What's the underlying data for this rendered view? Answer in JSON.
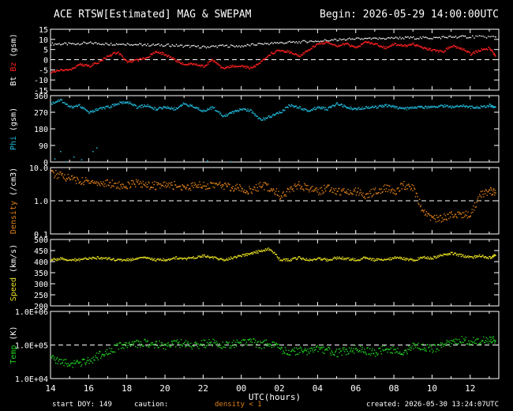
{
  "header": {
    "title": "ACE RTSW[Estimated] MAG & SWEPAM",
    "begin": "Begin: 2026-05-29 14:00:00UTC"
  },
  "footer": {
    "start_doy": "start DOY: 149",
    "caution": "caution:",
    "density_note": "density < 1",
    "created": "created: 2026-05-30 13:24:07UTC"
  },
  "colors": {
    "bt": "#ffffff",
    "bz": "#ff2020",
    "phi": "#20b8d8",
    "density": "#e08018",
    "speed": "#e8e020",
    "temp": "#20d020",
    "frame": "#ffffff"
  },
  "chart_data": {
    "type": "scatter",
    "xlabel": "UTC(hours)",
    "x_tick_labels": [
      "14",
      "16",
      "18",
      "20",
      "22",
      "00",
      "02",
      "04",
      "06",
      "08",
      "10",
      "12"
    ],
    "x_range_hours": [
      14,
      37.5
    ],
    "panels": [
      {
        "id": "mag",
        "ylabel_parts": [
          {
            "text": "Bt",
            "color": "#ffffff"
          },
          {
            "text": " Bz",
            "color": "#ff2020"
          },
          {
            "text": " (gsm)",
            "color": "#ffffff"
          }
        ],
        "ylim": [
          -15,
          15
        ],
        "y_ticks": [
          "15",
          "10",
          "5",
          "0",
          "-5",
          "-10",
          "-15"
        ],
        "zero_line": 0,
        "series": [
          {
            "name": "Bt",
            "color": "#ffffff",
            "x": [
              14,
              15,
              16,
              17,
              18,
              19,
              20,
              21,
              22,
              23,
              24,
              25,
              26,
              27,
              28,
              29,
              30,
              31,
              32,
              33,
              34,
              35,
              36,
              37.3
            ],
            "y": [
              8,
              8,
              8.5,
              8,
              8,
              7.5,
              7.5,
              7,
              6.5,
              7,
              7,
              8,
              8.5,
              9,
              9.5,
              10,
              10.5,
              10.5,
              11,
              11,
              11,
              11.5,
              11.5,
              11.5
            ]
          },
          {
            "name": "Bz",
            "color": "#ff2020",
            "x": [
              14,
              14.5,
              15,
              15.5,
              16,
              16.5,
              17,
              17.5,
              18,
              18.5,
              19,
              19.5,
              20,
              20.5,
              21,
              21.5,
              22,
              22.5,
              23,
              23.5,
              24,
              24.5,
              25,
              25.5,
              26,
              26.5,
              27,
              27.5,
              28,
              28.5,
              29,
              29.5,
              30,
              30.5,
              31,
              31.5,
              32,
              32.5,
              33,
              33.5,
              34,
              34.5,
              35,
              35.5,
              36,
              36.5,
              37,
              37.3
            ],
            "y": [
              -6,
              -5,
              -5,
              -2,
              -3,
              -1,
              2,
              4,
              -1,
              0,
              1,
              4,
              3,
              0,
              -2,
              -2,
              -3,
              0,
              -4,
              -3,
              -3,
              -4,
              -1,
              3,
              5,
              4,
              2,
              5,
              8,
              9,
              7,
              8,
              6,
              9,
              8,
              6,
              8,
              7,
              8,
              6,
              5,
              4,
              7,
              6,
              3,
              5,
              6,
              2
            ]
          }
        ]
      },
      {
        "id": "phi",
        "ylabel_parts": [
          {
            "text": "Phi",
            "color": "#20b8d8"
          },
          {
            "text": " (gsm)",
            "color": "#ffffff"
          }
        ],
        "ylim": [
          0,
          360
        ],
        "y_ticks": [
          "360",
          "270",
          "180",
          "90",
          "0"
        ],
        "series": [
          {
            "name": "Phi",
            "color": "#20b8d8",
            "x": [
              14,
              14.5,
              15,
              15.5,
              16,
              16.5,
              17,
              17.5,
              18,
              18.5,
              19,
              19.5,
              20,
              20.5,
              21,
              21.5,
              22,
              22.5,
              23,
              23.5,
              24,
              24.5,
              25,
              25.5,
              26,
              26.5,
              27,
              27.5,
              28,
              28.5,
              29,
              29.5,
              30,
              30.5,
              31,
              31.5,
              32,
              32.5,
              33,
              33.5,
              34,
              34.5,
              35,
              35.5,
              36,
              36.5,
              37,
              37.3
            ],
            "y": [
              320,
              340,
              300,
              310,
              270,
              290,
              300,
              320,
              330,
              300,
              310,
              290,
              300,
              290,
              320,
              300,
              280,
              300,
              250,
              270,
              290,
              280,
              230,
              250,
              270,
              310,
              300,
              280,
              300,
              290,
              320,
              300,
              290,
              300,
              300,
              310,
              300,
              290,
              300,
              300,
              300,
              310,
              300,
              310,
              300,
              300,
              310,
              300
            ]
          },
          {
            "name": "Phi-low",
            "color": "#20b8d8",
            "x": [
              14.2,
              14.5,
              14.8,
              15.2,
              15.6,
              16.2,
              16.4,
              22.2,
              23.4
            ],
            "y": [
              20,
              60,
              5,
              30,
              15,
              60,
              80,
              10,
              5
            ]
          }
        ]
      },
      {
        "id": "density",
        "ylabel_parts": [
          {
            "text": "Density",
            "color": "#e08018"
          },
          {
            "text": " (/cm3)",
            "color": "#ffffff"
          }
        ],
        "ylim": [
          0.1,
          10
        ],
        "log": true,
        "y_ticks": [
          "10.0",
          "1.0",
          "0.1"
        ],
        "reference_line": 1.0,
        "series": [
          {
            "name": "Density",
            "color": "#e08018",
            "x": [
              14,
              14.5,
              15,
              15.5,
              16,
              16.5,
              17,
              17.5,
              18,
              18.5,
              19,
              19.5,
              20,
              20.5,
              21,
              21.5,
              22,
              22.5,
              23,
              23.5,
              24,
              24.5,
              25,
              25.5,
              26,
              26.5,
              27,
              27.5,
              28,
              28.5,
              29,
              29.5,
              30,
              30.5,
              31,
              31.5,
              32,
              32.5,
              33,
              33.5,
              34,
              34.5,
              35,
              35.5,
              36,
              36.5,
              37,
              37.3
            ],
            "y": [
              7,
              6,
              5,
              4,
              4,
              3.5,
              3.5,
              3,
              3,
              3.5,
              3,
              3,
              3,
              3,
              2.5,
              3,
              3,
              3,
              3,
              2.5,
              2.5,
              2,
              3,
              2.5,
              1.5,
              2,
              3,
              2.5,
              2,
              2.5,
              2,
              2,
              2,
              1.5,
              2,
              2.5,
              2,
              3,
              2.5,
              0.5,
              0.3,
              0.3,
              0.4,
              0.4,
              0.4,
              1.5,
              2,
              1.8
            ]
          }
        ]
      },
      {
        "id": "speed",
        "ylabel_parts": [
          {
            "text": "Speed",
            "color": "#e8e020"
          },
          {
            "text": " (km/s)",
            "color": "#ffffff"
          }
        ],
        "ylim": [
          200,
          500
        ],
        "y_ticks": [
          "500",
          "450",
          "400",
          "350",
          "300",
          "250",
          "200"
        ],
        "series": [
          {
            "name": "Speed",
            "color": "#e8e020",
            "x": [
              14,
              14.5,
              15,
              15.5,
              16,
              16.5,
              17,
              17.5,
              18,
              18.5,
              19,
              19.5,
              20,
              20.5,
              21,
              21.5,
              22,
              22.5,
              23,
              23.5,
              24,
              24.5,
              25,
              25.5,
              26,
              26.5,
              27,
              27.5,
              28,
              28.5,
              29,
              29.5,
              30,
              30.5,
              31,
              31.5,
              32,
              32.5,
              33,
              33.5,
              34,
              34.5,
              35,
              35.5,
              36,
              36.5,
              37,
              37.3
            ],
            "y": [
              410,
              415,
              410,
              410,
              415,
              420,
              415,
              410,
              410,
              415,
              420,
              410,
              410,
              420,
              415,
              420,
              430,
              420,
              410,
              420,
              430,
              440,
              450,
              460,
              410,
              410,
              420,
              410,
              415,
              410,
              420,
              415,
              410,
              420,
              410,
              410,
              420,
              415,
              410,
              420,
              420,
              430,
              440,
              430,
              420,
              430,
              420,
              430
            ]
          }
        ]
      },
      {
        "id": "temp",
        "ylabel_parts": [
          {
            "text": "Temp",
            "color": "#20d020"
          },
          {
            "text": " (K)",
            "color": "#ffffff"
          }
        ],
        "ylim": [
          10000,
          1000000
        ],
        "log": true,
        "y_ticks": [
          "1.0E+06",
          "1.0E+05",
          "1.0E+04"
        ],
        "reference_line": 100000,
        "series": [
          {
            "name": "Temp",
            "color": "#20d020",
            "x": [
              14,
              14.5,
              15,
              15.5,
              16,
              16.5,
              17,
              17.5,
              18,
              18.5,
              19,
              19.5,
              20,
              20.5,
              21,
              21.5,
              22,
              22.5,
              23,
              23.5,
              24,
              24.5,
              25,
              25.5,
              26,
              26.5,
              27,
              27.5,
              28,
              28.5,
              29,
              29.5,
              30,
              30.5,
              31,
              31.5,
              32,
              32.5,
              33,
              33.5,
              34,
              34.5,
              35,
              35.5,
              36,
              36.5,
              37,
              37.3
            ],
            "y": [
              40000,
              35000,
              30000,
              28000,
              35000,
              50000,
              70000,
              90000,
              100000,
              110000,
              120000,
              110000,
              100000,
              110000,
              120000,
              100000,
              110000,
              120000,
              100000,
              110000,
              120000,
              130000,
              100000,
              120000,
              80000,
              60000,
              70000,
              60000,
              80000,
              70000,
              60000,
              70000,
              80000,
              70000,
              60000,
              80000,
              70000,
              60000,
              100000,
              90000,
              80000,
              100000,
              120000,
              150000,
              130000,
              140000,
              150000,
              140000
            ]
          }
        ]
      }
    ]
  }
}
